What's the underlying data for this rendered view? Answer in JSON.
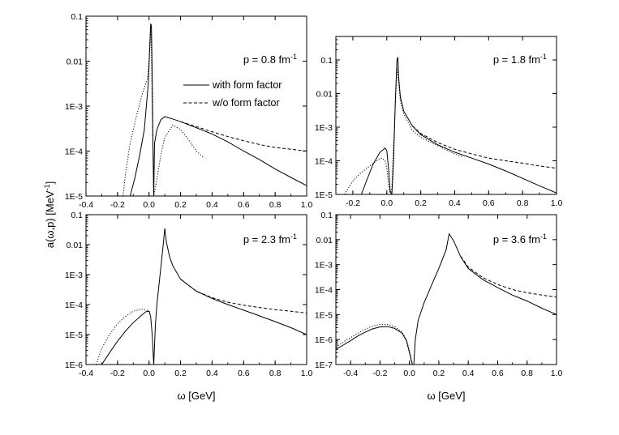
{
  "figure": {
    "ylabel": "a(ω,p) [MeV",
    "ylabel_sup": "-1",
    "ylabel_close": "]",
    "xlabel_left": "ω [GeV]",
    "xlabel_right": "ω [GeV]"
  },
  "legend": {
    "solid": "with form factor",
    "dashed": "w/o form factor"
  },
  "chart_data": [
    {
      "type": "line",
      "panel_label": "p = 0.8 fm",
      "panel_label_sup": "-1",
      "x_range": [
        -0.4,
        1.0
      ],
      "y_scale": "log",
      "y_range": [
        1e-05,
        0.1
      ],
      "x_ticks": [
        "-0.4",
        "-0.2",
        "0.0",
        "0.2",
        "0.4",
        "0.6",
        "0.8",
        "1.0"
      ],
      "y_ticks": [
        "1E-5",
        "1E-4",
        "1E-3",
        "0.01",
        "0.1"
      ],
      "series": [
        {
          "name": "with form factor",
          "style": "solid",
          "x": [
            -0.12,
            -0.09,
            -0.06,
            -0.03,
            -0.005,
            0.01,
            0.015,
            0.02,
            0.025,
            0.03,
            0.035,
            0.05,
            0.075,
            0.1,
            0.15,
            0.2,
            0.3,
            0.4,
            0.5,
            0.6,
            0.7,
            0.8,
            0.9,
            1.0
          ],
          "y": [
            1e-05,
            2.5e-05,
            8e-05,
            0.0003,
            0.003,
            0.06,
            0.065,
            0.005,
            0.00012,
            1e-05,
            0.00015,
            0.0003,
            0.0005,
            0.00058,
            0.00052,
            0.00045,
            0.00033,
            0.00024,
            0.00016,
            0.0001,
            6.5e-05,
            4e-05,
            2.6e-05,
            1.7e-05
          ]
        },
        {
          "name": "w/o form factor",
          "style": "dashed",
          "x": [
            0.2,
            0.3,
            0.4,
            0.5,
            0.6,
            0.7,
            0.8,
            0.9,
            1.0
          ],
          "y": [
            0.00045,
            0.00035,
            0.00027,
            0.00021,
            0.00017,
            0.00014,
            0.00012,
            0.00011,
            0.0001
          ]
        },
        {
          "name": "",
          "style": "dotted",
          "x": [
            -0.165,
            -0.15,
            -0.12,
            -0.08,
            -0.04,
            -0.01,
            0.0,
            0.01,
            0.015,
            0.02,
            0.03,
            0.04,
            0.06,
            0.08,
            0.1,
            0.15,
            0.2,
            0.25,
            0.3,
            0.35
          ],
          "y": [
            1e-05,
            3e-05,
            0.00015,
            0.0006,
            0.002,
            0.004,
            0.01,
            0.07,
            0.015,
            0.001,
            1e-05,
            1.5e-05,
            4e-05,
            0.0001,
            0.0002,
            0.00038,
            0.0003,
            0.00018,
            0.0001,
            7e-05
          ]
        }
      ]
    },
    {
      "type": "line",
      "panel_label": "p = 1.8 fm",
      "panel_label_sup": "-1",
      "x_range": [
        -0.3,
        1.0
      ],
      "y_scale": "log",
      "y_range": [
        1e-05,
        0.5
      ],
      "x_ticks": [
        "-0.2",
        "0.0",
        "0.2",
        "0.4",
        "0.6",
        "0.8",
        "1.0"
      ],
      "y_ticks": [
        "1E-5",
        "1E-4",
        "1E-3",
        "0.01",
        "0.1"
      ],
      "series": [
        {
          "name": "with form factor",
          "style": "solid",
          "x": [
            -0.15,
            -0.12,
            -0.08,
            -0.04,
            -0.01,
            0.0,
            0.01,
            0.02,
            0.03,
            0.04,
            0.05,
            0.06,
            0.065,
            0.07,
            0.08,
            0.1,
            0.15,
            0.2,
            0.3,
            0.4,
            0.5,
            0.6,
            0.7,
            0.8,
            0.9,
            1.0
          ],
          "y": [
            1e-05,
            2.5e-05,
            8e-05,
            0.00018,
            0.00024,
            0.0002,
            6e-05,
            1.2e-05,
            1e-05,
            0.0001,
            0.005,
            0.1,
            0.12,
            0.03,
            0.008,
            0.003,
            0.0011,
            0.0006,
            0.0003,
            0.00018,
            0.00012,
            8e-05,
            5e-05,
            3e-05,
            1.8e-05,
            1.1e-05
          ]
        },
        {
          "name": "w/o form factor",
          "style": "dashed",
          "x": [
            0.15,
            0.2,
            0.3,
            0.4,
            0.5,
            0.6,
            0.7,
            0.8,
            0.9,
            1.0
          ],
          "y": [
            0.0011,
            0.00065,
            0.00035,
            0.00022,
            0.00016,
            0.00012,
            0.0001,
            8.5e-05,
            7e-05,
            6e-05
          ]
        },
        {
          "name": "",
          "style": "dotted",
          "x": [
            -0.25,
            -0.2,
            -0.15,
            -0.1,
            -0.06,
            -0.03,
            -0.01,
            0.0,
            0.01,
            0.02,
            0.03,
            0.04,
            0.05,
            0.06,
            0.07,
            0.08,
            0.1,
            0.15,
            0.2,
            0.3,
            0.4,
            0.45
          ],
          "y": [
            1e-05,
            2.5e-05,
            4.5e-05,
            7e-05,
            0.0001,
            0.00012,
            0.0001,
            6e-05,
            2e-05,
            1e-05,
            1.5e-05,
            0.0003,
            0.004,
            0.06,
            0.02,
            0.006,
            0.0025,
            0.0008,
            0.0005,
            0.00028,
            0.00016,
            0.00013
          ]
        }
      ]
    },
    {
      "type": "line",
      "panel_label": "p = 2.3 fm",
      "panel_label_sup": "-1",
      "x_range": [
        -0.4,
        1.0
      ],
      "y_scale": "log",
      "y_range": [
        1e-06,
        0.1
      ],
      "x_ticks": [
        "-0.4",
        "-0.2",
        "0.0",
        "0.2",
        "0.4",
        "0.6",
        "0.8",
        "1.0"
      ],
      "y_ticks": [
        "1E-6",
        "1E-5",
        "1E-4",
        "1E-3",
        "0.01",
        "0.1"
      ],
      "series": [
        {
          "name": "with form factor",
          "style": "solid",
          "x": [
            -0.3,
            -0.25,
            -0.2,
            -0.15,
            -0.1,
            -0.05,
            -0.02,
            0.0,
            0.01,
            0.02,
            0.03,
            0.04,
            0.05,
            0.07,
            0.09,
            0.1,
            0.11,
            0.13,
            0.15,
            0.2,
            0.3,
            0.4,
            0.5,
            0.6,
            0.7,
            0.8,
            0.9,
            1.0
          ],
          "y": [
            1e-06,
            2.5e-06,
            6e-06,
            1.3e-05,
            2.5e-05,
            4.3e-05,
            5.8e-05,
            6e-05,
            4e-05,
            1e-05,
            1e-06,
            2e-05,
            0.0001,
            0.001,
            0.01,
            0.035,
            0.012,
            0.004,
            0.002,
            0.0007,
            0.00028,
            0.00016,
            0.0001,
            6.5e-05,
            4.2e-05,
            2.7e-05,
            1.7e-05,
            1e-05
          ]
        },
        {
          "name": "w/o form factor",
          "style": "dashed",
          "x": [
            0.2,
            0.3,
            0.4,
            0.5,
            0.6,
            0.7,
            0.8,
            0.9,
            1.0
          ],
          "y": [
            0.0007,
            0.00028,
            0.00017,
            0.00012,
            9.5e-05,
            8e-05,
            6.8e-05,
            6e-05,
            5.2e-05
          ]
        },
        {
          "name": "",
          "style": "dotted",
          "x": [
            -0.335,
            -0.3,
            -0.25,
            -0.2,
            -0.15,
            -0.1,
            -0.05,
            -0.03,
            -0.01,
            0.0,
            0.01
          ],
          "y": [
            1e-06,
            3.5e-06,
            1e-05,
            2.3e-05,
            4e-05,
            6e-05,
            7e-05,
            6.8e-05,
            6.3e-05,
            6e-05,
            5e-05
          ]
        }
      ]
    },
    {
      "type": "line",
      "panel_label": "p = 3.6 fm",
      "panel_label_sup": "-1",
      "x_range": [
        -0.5,
        1.0
      ],
      "y_scale": "log",
      "y_range": [
        1e-07,
        0.1
      ],
      "x_ticks": [
        "-0.4",
        "-0.2",
        "0.0",
        "0.2",
        "0.4",
        "0.6",
        "0.8",
        "1.0"
      ],
      "y_ticks": [
        "1E-7",
        "1E-6",
        "1E-5",
        "1E-4",
        "1E-3",
        "0.01",
        "0.1"
      ],
      "series": [
        {
          "name": "with form factor",
          "style": "solid",
          "x": [
            -0.5,
            -0.45,
            -0.4,
            -0.35,
            -0.3,
            -0.25,
            -0.2,
            -0.15,
            -0.1,
            -0.05,
            -0.02,
            0.0,
            0.02,
            0.03,
            0.04,
            0.06,
            0.1,
            0.15,
            0.2,
            0.25,
            0.27,
            0.3,
            0.35,
            0.4,
            0.5,
            0.6,
            0.7,
            0.8,
            0.9,
            1.0
          ],
          "y": [
            4e-07,
            6e-07,
            9e-07,
            1.4e-06,
            2e-06,
            2.7e-06,
            3.2e-06,
            3.3e-06,
            2.8e-06,
            1.8e-06,
            9e-07,
            3e-07,
            1e-07,
            1e-07,
            1e-06,
            6e-06,
            3e-05,
            0.00015,
            0.0007,
            0.004,
            0.017,
            0.009,
            0.002,
            0.0007,
            0.00025,
            0.00012,
            6e-05,
            3.5e-05,
            1.8e-05,
            1e-05
          ]
        },
        {
          "name": "w/o form factor",
          "style": "dashed",
          "x": [
            0.35,
            0.4,
            0.5,
            0.6,
            0.7,
            0.8,
            0.9,
            1.0
          ],
          "y": [
            0.0021,
            0.0008,
            0.0003,
            0.00016,
            0.0001,
            7.5e-05,
            6e-05,
            5e-05
          ]
        },
        {
          "name": "",
          "style": "dotted",
          "x": [
            -0.5,
            -0.45,
            -0.4,
            -0.35,
            -0.3,
            -0.25,
            -0.2,
            -0.15,
            -0.1,
            -0.05,
            -0.02,
            0.0,
            0.02
          ],
          "y": [
            5e-07,
            8e-07,
            1.2e-06,
            1.8e-06,
            2.6e-06,
            3.5e-06,
            4e-06,
            4e-06,
            3.3e-06,
            2e-06,
            1e-06,
            3.5e-07,
            1e-07
          ]
        }
      ]
    }
  ]
}
